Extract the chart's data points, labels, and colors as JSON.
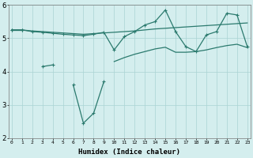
{
  "xlabel": "Humidex (Indice chaleur)",
  "x": [
    0,
    1,
    2,
    3,
    4,
    5,
    6,
    7,
    8,
    9,
    10,
    11,
    12,
    13,
    14,
    15,
    16,
    17,
    18,
    19,
    20,
    21,
    22,
    23
  ],
  "line_flat_top": [
    5.25,
    5.25,
    5.22,
    5.2,
    5.18,
    5.16,
    5.14,
    5.12,
    5.14,
    5.16,
    5.18,
    5.2,
    5.22,
    5.25,
    5.28,
    5.3,
    5.32,
    5.34,
    5.36,
    5.38,
    5.4,
    5.42,
    5.44,
    5.46
  ],
  "line_main": [
    5.25,
    5.25,
    5.2,
    5.18,
    5.15,
    5.12,
    5.1,
    5.08,
    5.12,
    5.18,
    4.65,
    5.05,
    5.2,
    5.4,
    5.5,
    5.85,
    5.2,
    4.75,
    4.6,
    5.1,
    5.2,
    5.75,
    5.7,
    4.75
  ],
  "line_dip": [
    5.25,
    5.25,
    null,
    4.15,
    4.2,
    null,
    3.6,
    2.45,
    2.75,
    3.7,
    null,
    null,
    null,
    null,
    null,
    null,
    null,
    null,
    null,
    null,
    null,
    null,
    null,
    null
  ],
  "line_lower": [
    null,
    null,
    null,
    null,
    null,
    null,
    null,
    null,
    null,
    null,
    4.3,
    4.42,
    4.52,
    4.6,
    4.68,
    4.73,
    4.58,
    4.58,
    4.6,
    4.65,
    4.72,
    4.78,
    4.82,
    4.72
  ],
  "color": "#2b7a6e",
  "bg_color": "#d4eeee",
  "grid_color": "#aad4d4",
  "ylim": [
    2,
    6
  ],
  "yticks": [
    2,
    3,
    4,
    5,
    6
  ],
  "xticks": [
    0,
    1,
    2,
    3,
    4,
    5,
    6,
    7,
    8,
    9,
    10,
    11,
    12,
    13,
    14,
    15,
    16,
    17,
    18,
    19,
    20,
    21,
    22,
    23
  ]
}
